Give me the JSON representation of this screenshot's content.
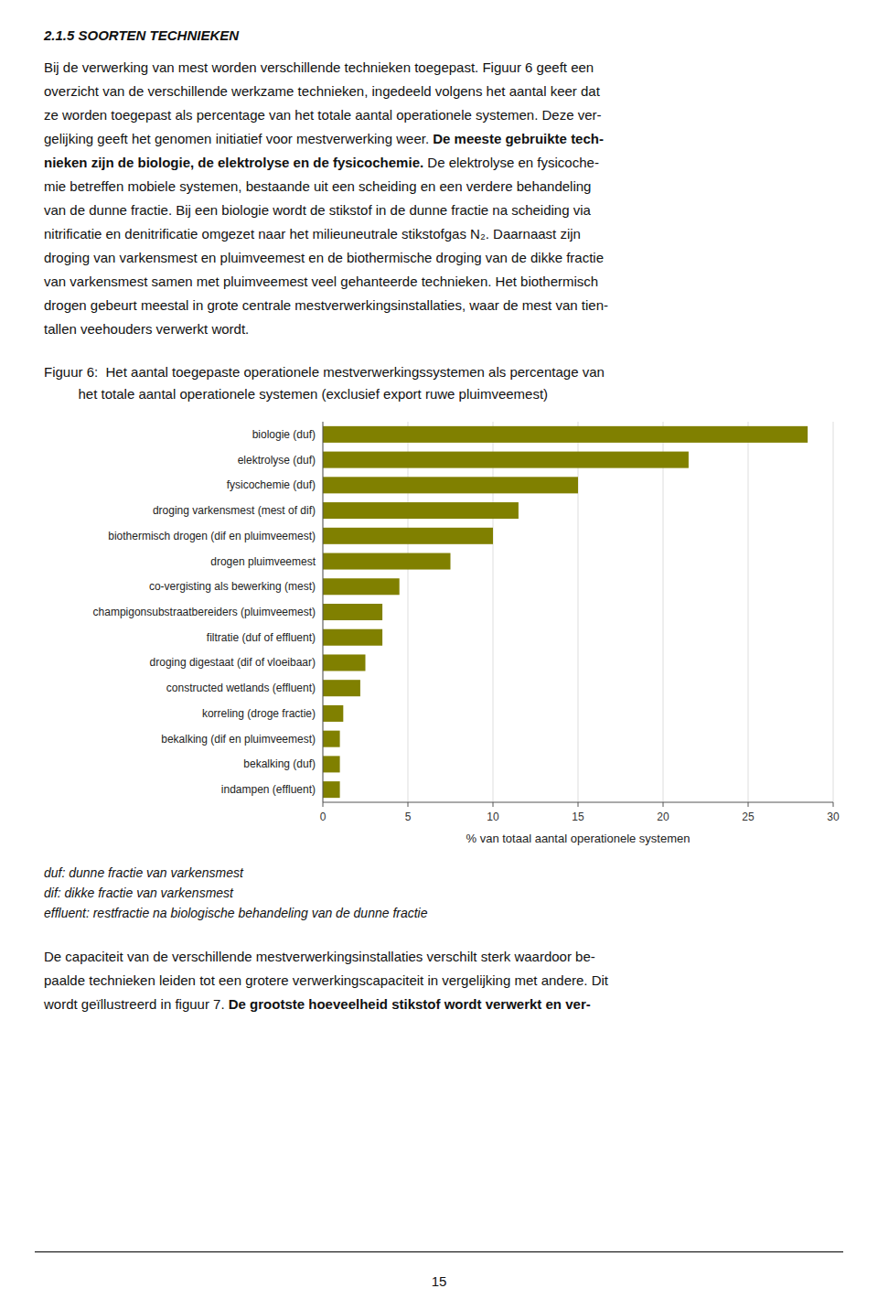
{
  "heading": "2.1.5 SOORTEN TECHNIEKEN",
  "body_lines": [
    [
      {
        "text": "Bij de verwerking van mest worden verschillende technieken toegepast. Figuur 6 geeft een",
        "bold": false
      }
    ],
    [
      {
        "text": "overzicht van de verschillende werkzame technieken, ingedeeld volgens het aantal keer dat",
        "bold": false
      }
    ],
    [
      {
        "text": "ze worden toegepast als percentage van het totale aantal operationele systemen. Deze ver-",
        "bold": false
      }
    ],
    [
      {
        "text": "gelijking geeft het genomen initiatief voor mestverwerking weer. ",
        "bold": false
      },
      {
        "text": "De meeste gebruikte tech-",
        "bold": true
      }
    ],
    [
      {
        "text": "nieken zijn de biologie, de elektrolyse en de fysicochemie.",
        "bold": true
      },
      {
        "text": " De elektrolyse en fysicoche-",
        "bold": false
      }
    ],
    [
      {
        "text": "mie betreffen mobiele systemen, bestaande uit een scheiding en een verdere behandeling",
        "bold": false
      }
    ],
    [
      {
        "text": "van de dunne fractie. Bij een biologie wordt de stikstof in de dunne fractie na scheiding via",
        "bold": false
      }
    ],
    [
      {
        "text": "nitrificatie en denitrificatie omgezet naar het milieuneutrale stikstofgas N₂. Daarnaast zijn",
        "bold": false
      }
    ],
    [
      {
        "text": "droging van varkensmest en pluimveemest en de biothermische droging van de dikke fractie",
        "bold": false
      }
    ],
    [
      {
        "text": "van varkensmest samen met pluimveemest veel gehanteerde technieken. Het biothermisch",
        "bold": false
      }
    ],
    [
      {
        "text": "drogen gebeurt meestal in grote centrale mestverwerkingsinstallaties, waar de mest van tien-",
        "bold": false
      }
    ],
    [
      {
        "text": "tallen veehouders verwerkt wordt.",
        "bold": false
      }
    ]
  ],
  "chart_data": {
    "type": "bar",
    "orientation": "horizontal",
    "title": "Figuur 6:  Het aantal toegepaste operationele mestverwerkingssystemen als percentage van",
    "subtitle": "         het totale aantal operationele systemen (exclusief export ruwe pluimveemest)",
    "categories": [
      "biologie (duf)",
      "elektrolyse (duf)",
      "fysicochemie (duf)",
      "droging varkensmest (mest of dif)",
      "biothermisch drogen (dif en pluimveemest)",
      "drogen pluimveemest",
      "co-vergisting als bewerking (mest)",
      "champigonsubstraatbereiders (pluimveemest)",
      "filtratie (duf of effluent)",
      "droging digestaat (dif of vloeibaar)",
      "constructed wetlands (effluent)",
      "korreling (droge fractie)",
      "bekalking (dif en pluimveemest)",
      "bekalking (duf)",
      "indampen (effluent)"
    ],
    "values": [
      28.5,
      21.5,
      15.0,
      11.5,
      10.0,
      7.5,
      4.5,
      3.5,
      3.5,
      2.5,
      2.2,
      1.2,
      1.0,
      1.0,
      1.0
    ],
    "color": "#808000",
    "xlim": [
      0,
      30
    ],
    "xticks": [
      0,
      5,
      10,
      15,
      20,
      25,
      30
    ],
    "xlabel": "% van totaal aantal operationele systemen",
    "grid": true
  },
  "footnotes": [
    "duf: dunne fractie van varkensmest",
    "dif: dikke fractie van varkensmest",
    "effluent: restfractie na biologische behandeling van de dunne fractie"
  ],
  "bottom_lines": [
    [
      {
        "text": "De capaciteit van de verschillende mestverwerkingsinstallaties verschilt sterk waardoor be-",
        "bold": false
      }
    ],
    [
      {
        "text": "paalde technieken leiden tot een grotere verwerkingscapaciteit in vergelijking met andere. Dit",
        "bold": false
      }
    ],
    [
      {
        "text": "wordt geïllustreerd in figuur 7. ",
        "bold": false
      },
      {
        "text": "De grootste hoeveelheid stikstof wordt verwerkt en ver-",
        "bold": true
      }
    ]
  ],
  "page_number": "15"
}
